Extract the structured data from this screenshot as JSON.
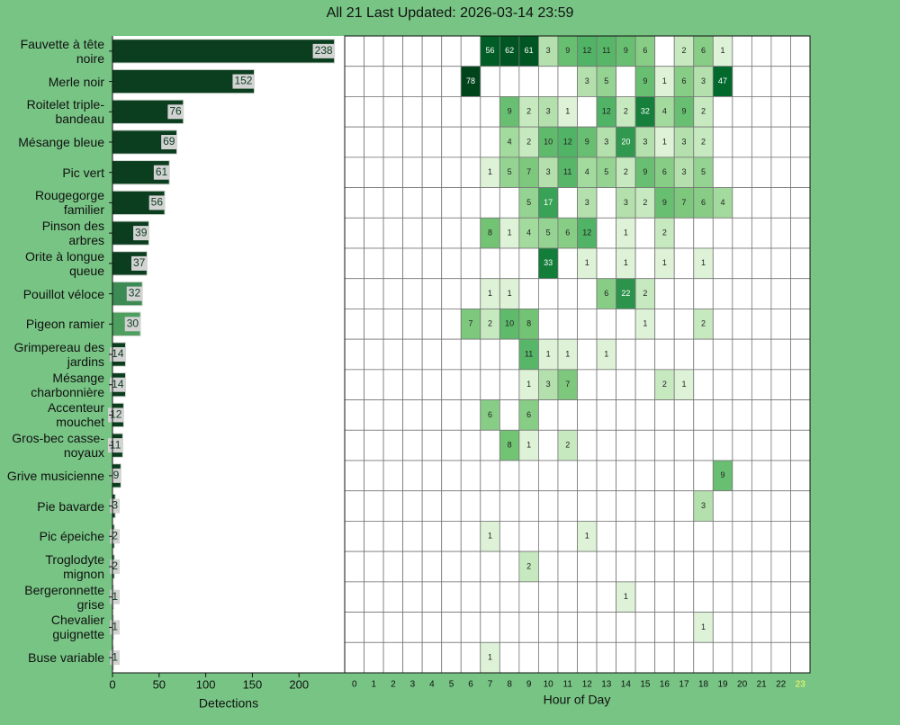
{
  "chart_data": [
    {
      "type": "barh",
      "title": "All 21 Last Updated: 2026-03-14 23:59",
      "categories": [
        "Fauvette à tête noire",
        "Merle noir",
        "Roitelet triple-bandeau",
        "Mésange bleue",
        "Pic vert",
        "Rougegorge familier",
        "Pinson des arbres",
        "Orite à longue queue",
        "Pouillot véloce",
        "Pigeon ramier",
        "Grimpereau des jardins",
        "Mésange charbonnière",
        "Accenteur mouchet",
        "Gros-bec casse-noyaux",
        "Grive musicienne",
        "Pie bavarde",
        "Pic épeiche",
        "Troglodyte mignon",
        "Bergeronnette grise",
        "Chevalier guignette",
        "Buse variable"
      ],
      "values": [
        238,
        152,
        76,
        69,
        61,
        56,
        39,
        37,
        32,
        30,
        14,
        14,
        12,
        11,
        9,
        3,
        2,
        2,
        1,
        1,
        1
      ],
      "colors": [
        "#0b3d1f",
        "#0b3d1f",
        "#0b3d1f",
        "#0b3d1f",
        "#0b3d1f",
        "#0b3d1f",
        "#0b3d1f",
        "#0b3d1f",
        "#3d8b54",
        "#4e9e60",
        "#0b3d1f",
        "#0b3d1f",
        "#0b3d1f",
        "#0b3d1f",
        "#0b3d1f",
        "#0b3d1f",
        "#0b3d1f",
        "#0b3d1f",
        "#0b3d1f",
        "#0b3d1f",
        "#0b3d1f"
      ],
      "xlim": [
        0,
        249
      ],
      "xticks": [
        0,
        50,
        100,
        150,
        200
      ],
      "xlabel": "Detections"
    },
    {
      "type": "heatmap",
      "colormap": "Greens",
      "xlabel": "Hour of Day",
      "x": [
        0,
        1,
        2,
        3,
        4,
        5,
        6,
        7,
        8,
        9,
        10,
        11,
        12,
        13,
        14,
        15,
        16,
        17,
        18,
        19,
        20,
        21,
        22,
        23
      ],
      "highlight_x": 23,
      "highlight_color": "#ffff66",
      "values": [
        [
          null,
          null,
          null,
          null,
          null,
          null,
          null,
          56,
          62,
          61,
          3,
          9,
          12,
          11,
          9,
          6,
          null,
          2,
          6,
          1,
          null,
          null,
          null,
          null
        ],
        [
          null,
          null,
          null,
          null,
          null,
          null,
          78,
          null,
          null,
          null,
          null,
          null,
          3,
          5,
          null,
          9,
          1,
          6,
          3,
          47,
          null,
          null,
          null,
          null
        ],
        [
          null,
          null,
          null,
          null,
          null,
          null,
          null,
          null,
          9,
          2,
          3,
          1,
          null,
          12,
          2,
          32,
          4,
          9,
          2,
          null,
          null,
          null,
          null,
          null
        ],
        [
          null,
          null,
          null,
          null,
          null,
          null,
          null,
          null,
          4,
          2,
          10,
          12,
          9,
          3,
          20,
          3,
          1,
          3,
          2,
          null,
          null,
          null,
          null,
          null
        ],
        [
          null,
          null,
          null,
          null,
          null,
          null,
          null,
          1,
          5,
          7,
          3,
          11,
          4,
          5,
          2,
          9,
          6,
          3,
          5,
          null,
          null,
          null,
          null,
          null
        ],
        [
          null,
          null,
          null,
          null,
          null,
          null,
          null,
          null,
          null,
          5,
          17,
          null,
          3,
          null,
          3,
          2,
          9,
          7,
          6,
          4,
          null,
          null,
          null,
          null
        ],
        [
          null,
          null,
          null,
          null,
          null,
          null,
          null,
          8,
          1,
          4,
          5,
          6,
          12,
          null,
          1,
          null,
          2,
          null,
          null,
          null,
          null,
          null,
          null,
          null
        ],
        [
          null,
          null,
          null,
          null,
          null,
          null,
          null,
          null,
          null,
          null,
          33,
          null,
          1,
          null,
          1,
          null,
          1,
          null,
          1,
          null,
          null,
          null,
          null,
          null
        ],
        [
          null,
          null,
          null,
          null,
          null,
          null,
          null,
          1,
          1,
          null,
          null,
          null,
          null,
          6,
          22,
          2,
          null,
          null,
          null,
          null,
          null,
          null,
          null,
          null
        ],
        [
          null,
          null,
          null,
          null,
          null,
          null,
          7,
          2,
          10,
          8,
          null,
          null,
          null,
          null,
          null,
          1,
          null,
          null,
          2,
          null,
          null,
          null,
          null,
          null
        ],
        [
          null,
          null,
          null,
          null,
          null,
          null,
          null,
          null,
          null,
          11,
          1,
          1,
          null,
          1,
          null,
          null,
          null,
          null,
          null,
          null,
          null,
          null,
          null,
          null
        ],
        [
          null,
          null,
          null,
          null,
          null,
          null,
          null,
          null,
          null,
          1,
          3,
          7,
          null,
          null,
          null,
          null,
          2,
          1,
          null,
          null,
          null,
          null,
          null,
          null
        ],
        [
          null,
          null,
          null,
          null,
          null,
          null,
          null,
          6,
          null,
          6,
          null,
          null,
          null,
          null,
          null,
          null,
          null,
          null,
          null,
          null,
          null,
          null,
          null,
          null
        ],
        [
          null,
          null,
          null,
          null,
          null,
          null,
          null,
          null,
          8,
          1,
          null,
          2,
          null,
          null,
          null,
          null,
          null,
          null,
          null,
          null,
          null,
          null,
          null,
          null
        ],
        [
          null,
          null,
          null,
          null,
          null,
          null,
          null,
          null,
          null,
          null,
          null,
          null,
          null,
          null,
          null,
          null,
          null,
          null,
          null,
          9,
          null,
          null,
          null,
          null
        ],
        [
          null,
          null,
          null,
          null,
          null,
          null,
          null,
          null,
          null,
          null,
          null,
          null,
          null,
          null,
          null,
          null,
          null,
          null,
          3,
          null,
          null,
          null,
          null,
          null
        ],
        [
          null,
          null,
          null,
          null,
          null,
          null,
          null,
          1,
          null,
          null,
          null,
          null,
          1,
          null,
          null,
          null,
          null,
          null,
          null,
          null,
          null,
          null,
          null,
          null
        ],
        [
          null,
          null,
          null,
          null,
          null,
          null,
          null,
          null,
          null,
          2,
          null,
          null,
          null,
          null,
          null,
          null,
          null,
          null,
          null,
          null,
          null,
          null,
          null,
          null
        ],
        [
          null,
          null,
          null,
          null,
          null,
          null,
          null,
          null,
          null,
          null,
          null,
          null,
          null,
          null,
          1,
          null,
          null,
          null,
          null,
          null,
          null,
          null,
          null,
          null
        ],
        [
          null,
          null,
          null,
          null,
          null,
          null,
          null,
          null,
          null,
          null,
          null,
          null,
          null,
          null,
          null,
          null,
          null,
          null,
          1,
          null,
          null,
          null,
          null,
          null
        ],
        [
          null,
          null,
          null,
          null,
          null,
          null,
          null,
          1,
          null,
          null,
          null,
          null,
          null,
          null,
          null,
          null,
          null,
          null,
          null,
          null,
          null,
          null,
          null,
          null
        ]
      ]
    }
  ]
}
